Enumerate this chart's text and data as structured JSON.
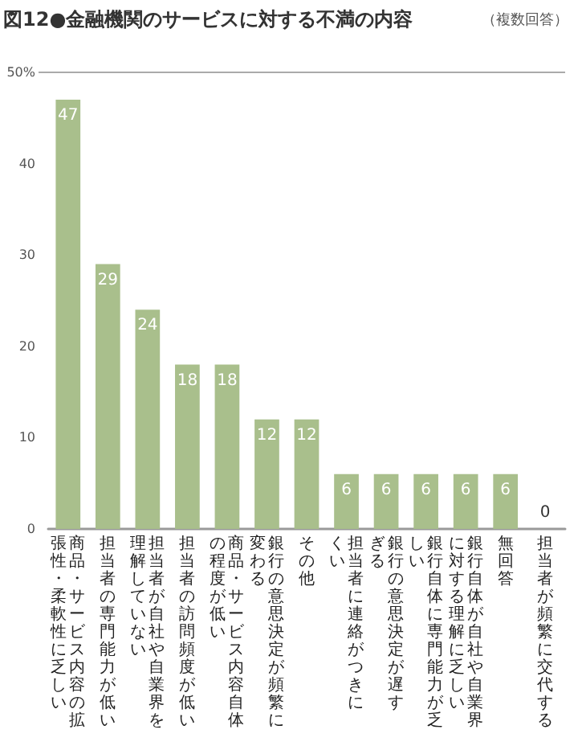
{
  "chart_data": {
    "type": "bar",
    "title": "図12●金融機関のサービスに対する不満の内容",
    "annotations": [
      "（複数回答）"
    ],
    "categories": [
      "商品・サービス内容の拡張性・柔軟性に乏しい",
      "担当者の専門能力が低い",
      "担当者が自社や自業界を理解していない",
      "担当者の訪問頻度が低い",
      "商品・サービス内容自体の程度が低い",
      "銀行の意思決定が頻繁に変わる",
      "その他",
      "担当者に連絡がつきにくい",
      "銀行の意思決定が遅すぎる",
      "銀行自体に専門能力が乏しい",
      "銀行自体が自社や自業界に対する理解に乏しい",
      "無回答",
      "担当者が頻繁に交代する"
    ],
    "values": [
      47,
      29,
      24,
      18,
      18,
      12,
      12,
      6,
      6,
      6,
      6,
      6,
      0
    ],
    "color": "#a9bf8c",
    "data_labels": true,
    "ylim": [
      0,
      50
    ],
    "yticks": [
      0,
      10,
      20,
      30,
      40,
      {
        "value": 50,
        "label": "50%"
      }
    ],
    "grid": false
  }
}
